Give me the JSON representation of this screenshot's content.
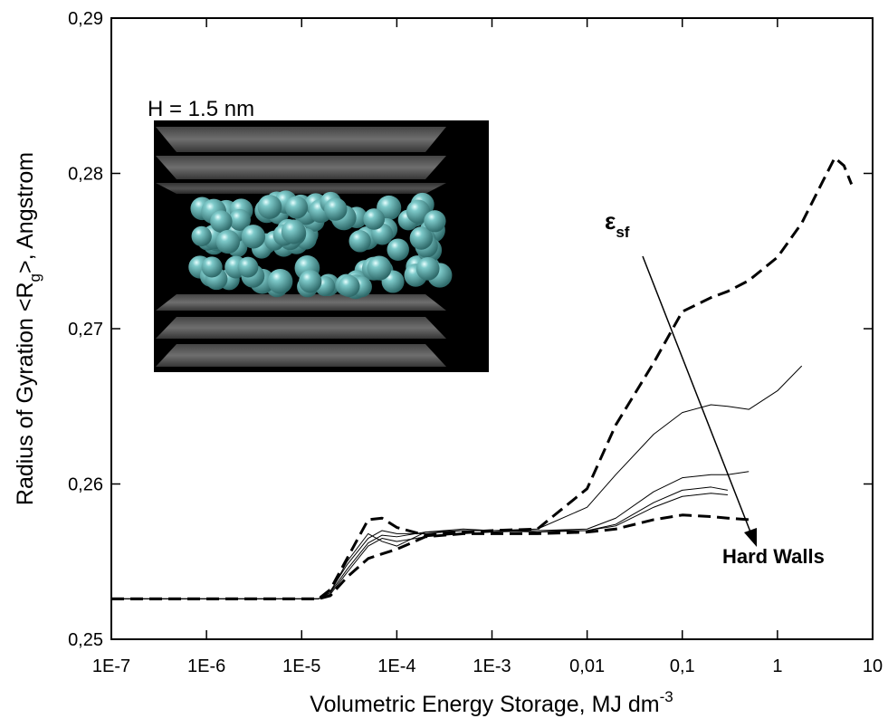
{
  "chart_data": {
    "type": "line",
    "xscale": "log",
    "xlabel": [
      "Volumetric Energy Storage, MJ dm",
      "-3"
    ],
    "ylabel": [
      "Radius of Gyration <R",
      "g",
      ">, Angstrom"
    ],
    "annotations": {
      "inset_label": "H = 1.5 nm",
      "arrow_label": [
        "ε",
        "sf"
      ],
      "arrow_end_label": "Hard Walls"
    },
    "xlim": [
      1e-07,
      10
    ],
    "xticks": [
      {
        "value": 1e-07,
        "label": "1E-7"
      },
      {
        "value": 1e-06,
        "label": "1E-6"
      },
      {
        "value": 1e-05,
        "label": "1E-5"
      },
      {
        "value": 0.0001,
        "label": "1E-4"
      },
      {
        "value": 0.001,
        "label": "1E-3"
      },
      {
        "value": 0.01,
        "label": "0,01"
      },
      {
        "value": 0.1,
        "label": "0,1"
      },
      1,
      10
    ],
    "ylim": [
      0.25,
      0.29
    ],
    "yticks": [
      {
        "value": 0.25,
        "label": "0,25"
      },
      {
        "value": 0.26,
        "label": "0,26"
      },
      {
        "value": 0.27,
        "label": "0,27"
      },
      {
        "value": 0.28,
        "label": "0,28"
      },
      {
        "value": 0.29,
        "label": "0,29"
      }
    ],
    "x": [
      1e-07,
      1e-06,
      1e-05,
      1.5e-05,
      2e-05,
      3e-05,
      5e-05,
      7e-05,
      0.0001,
      0.0002,
      0.0005,
      0.001,
      0.003,
      0.01,
      0.02,
      0.05,
      0.1,
      0.2,
      0.3,
      0.5,
      1,
      1.8,
      3,
      4,
      5,
      6
    ],
    "series": [
      {
        "color": "#000000",
        "linestyle": "dashed",
        "linewidth": 3,
        "values": [
          0.2526,
          0.2526,
          0.2526,
          0.2526,
          0.2532,
          0.2552,
          0.2577,
          0.2578,
          0.2572,
          0.2567,
          0.2569,
          0.257,
          0.2571,
          0.2597,
          0.2638,
          0.2678,
          0.2711,
          0.272,
          0.2724,
          0.2731,
          0.2746,
          0.2768,
          0.2795,
          0.281,
          0.2805,
          0.2793
        ]
      },
      {
        "color": "#000000",
        "linestyle": "solid",
        "linewidth": 1,
        "values": [
          0.2526,
          0.2526,
          0.2526,
          0.2526,
          0.253,
          0.2545,
          0.2562,
          0.2567,
          0.2566,
          0.2569,
          0.257,
          0.257,
          0.2571,
          0.2585,
          0.2606,
          0.2632,
          0.2646,
          0.2651,
          0.265,
          0.2648,
          0.266,
          0.2676,
          null,
          null,
          null,
          null
        ]
      },
      {
        "color": "#000000",
        "linestyle": "solid",
        "linewidth": 1,
        "values": [
          0.2526,
          0.2526,
          0.2526,
          0.2526,
          0.2531,
          0.2548,
          0.2565,
          0.257,
          0.2568,
          0.2568,
          0.257,
          0.257,
          0.257,
          0.2571,
          0.2578,
          0.2595,
          0.2604,
          0.2606,
          0.2606,
          0.2608,
          null,
          null,
          null,
          null,
          null,
          null
        ]
      },
      {
        "color": "#000000",
        "linestyle": "solid",
        "linewidth": 1,
        "values": [
          0.2526,
          0.2526,
          0.2526,
          0.2526,
          0.2529,
          0.2543,
          0.256,
          0.2565,
          0.2563,
          0.2566,
          0.2568,
          0.2569,
          0.257,
          0.257,
          0.2574,
          0.2588,
          0.2596,
          0.2598,
          0.2596,
          null,
          null,
          null,
          null,
          null,
          null,
          null
        ]
      },
      {
        "color": "#000000",
        "linestyle": "solid",
        "linewidth": 1,
        "values": [
          0.2526,
          0.2526,
          0.2526,
          0.2526,
          0.253,
          0.255,
          0.2568,
          0.2563,
          0.256,
          0.2569,
          0.2571,
          0.257,
          0.2569,
          0.257,
          0.2573,
          0.2585,
          0.2592,
          0.2594,
          0.2593,
          null,
          null,
          null,
          null,
          null,
          null,
          null
        ]
      },
      {
        "color": "#000000",
        "linestyle": "dashed",
        "linewidth": 3,
        "values": [
          0.2526,
          0.2526,
          0.2526,
          0.2526,
          0.2528,
          0.254,
          0.2552,
          0.2555,
          0.2558,
          0.2566,
          0.2568,
          0.2568,
          0.2568,
          0.2569,
          0.2571,
          0.2577,
          0.258,
          0.2579,
          0.2578,
          0.2577,
          null,
          null,
          null,
          null,
          null,
          null
        ]
      }
    ]
  }
}
